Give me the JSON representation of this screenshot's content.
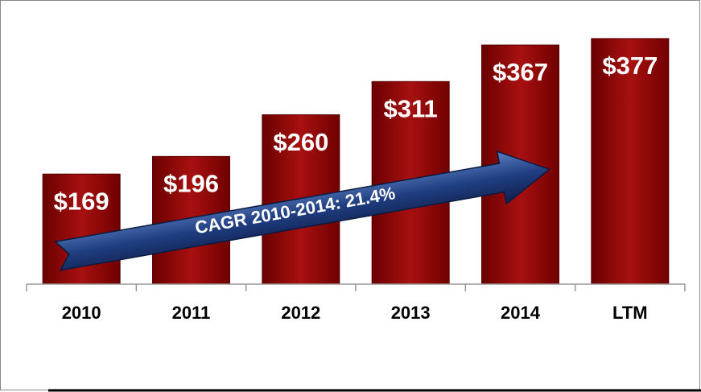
{
  "chart_data": {
    "type": "bar",
    "annotation": "CAGR 2010-2014: 21.4%",
    "categories": [
      "2010",
      "2011",
      "2012",
      "2013",
      "2014",
      "LTM"
    ],
    "values": [
      169,
      196,
      260,
      311,
      367,
      377
    ],
    "value_labels": [
      "$169",
      "$196",
      "$260",
      "$311",
      "$367",
      "$377"
    ],
    "color": "#8b0a0a",
    "ylim": [
      0,
      430
    ]
  }
}
